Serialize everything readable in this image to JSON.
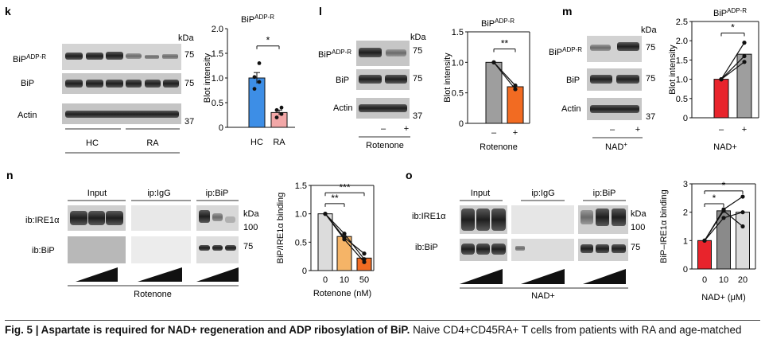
{
  "panels": {
    "k": {
      "letter": "k",
      "kda": "kDa",
      "rows": [
        "BiP",
        "ADP-R",
        "BiP",
        "Actin"
      ],
      "markers": [
        "75",
        "75",
        "37"
      ],
      "groups": [
        "HC",
        "RA"
      ],
      "chart_title": "BiP",
      "chart_title_sup": "ADP-R"
    },
    "l": {
      "letter": "l",
      "kda": "kDa",
      "rows": [
        "BiP",
        "ADP-R",
        "BiP",
        "Actin"
      ],
      "markers": [
        "75",
        "75",
        "37"
      ],
      "lane_signs": [
        "–",
        "+"
      ],
      "treatment": "Rotenone",
      "chart_title": "BiP",
      "chart_title_sup": "ADP-R"
    },
    "m": {
      "letter": "m",
      "kda": "kDa",
      "rows": [
        "BiP",
        "ADP-R",
        "BiP",
        "Actin"
      ],
      "markers": [
        "75",
        "75",
        "37"
      ],
      "lane_signs": [
        "–",
        "+"
      ],
      "treatment": "NAD",
      "treatment_sup": "+",
      "chart_title": "BiP",
      "chart_title_sup": "ADP-R"
    },
    "n": {
      "letter": "n",
      "kda": "kDa",
      "groups": [
        "Input",
        "ip:IgG",
        "ip:BiP"
      ],
      "rows": [
        "ib:IRE1α",
        "ib:BiP"
      ],
      "markers": [
        "100",
        "75"
      ],
      "treatment": "Rotenone"
    },
    "o": {
      "letter": "o",
      "kda": "kDa",
      "groups": [
        "Input",
        "ip:IgG",
        "ip:BiP"
      ],
      "rows": [
        "ib:IRE1α",
        "ib:BiP"
      ],
      "markers": [
        "100",
        "75"
      ],
      "treatment": "NAD+"
    }
  },
  "colors": {
    "hc_bar": "#3d8ee6",
    "ra_bar": "#f2a7a7",
    "grey_bar": "#9e9e9e",
    "rot_bar": "#f26b22",
    "nad_ctrl_bar": "#e8242c",
    "rot10_bar": "#f5b467",
    "light_bar": "#dcdcdc",
    "dark_bar": "#8a8a8a"
  },
  "chart_data": [
    {
      "panel": "k",
      "type": "bar",
      "title": "BiPADP-R",
      "categories": [
        "HC",
        "RA"
      ],
      "values": [
        1.0,
        0.3
      ],
      "errors": [
        0.11,
        0.05
      ],
      "points": [
        [
          0.78,
          0.92,
          1.02,
          1.3
        ],
        [
          0.2,
          0.27,
          0.35,
          0.4
        ]
      ],
      "ylabel": "Blot intensity",
      "xlabel": "",
      "ylim": [
        0,
        2.0
      ],
      "yticks": [
        "0",
        "0.5",
        "1.0",
        "1.5",
        "2.0"
      ],
      "significance": [
        {
          "label": "*",
          "from": 0,
          "to": 1
        }
      ]
    },
    {
      "panel": "l",
      "type": "bar",
      "title": "BiPADP-R",
      "categories": [
        "–",
        "+"
      ],
      "values": [
        1.0,
        0.6
      ],
      "paired": [
        [
          1.0,
          0.62
        ],
        [
          1.0,
          0.56
        ]
      ],
      "ylabel": "Blot intensity",
      "xlabel": "Rotenone",
      "ylim": [
        0,
        1.5
      ],
      "yticks": [
        "0",
        "0.5",
        "1.0",
        "1.5"
      ],
      "significance": [
        {
          "label": "**",
          "from": 0,
          "to": 1
        }
      ]
    },
    {
      "panel": "m",
      "type": "bar",
      "title": "BiPADP-R",
      "categories": [
        "–",
        "+"
      ],
      "values": [
        1.0,
        1.65
      ],
      "paired": [
        [
          1.0,
          1.95
        ],
        [
          1.0,
          1.6
        ],
        [
          1.0,
          1.45
        ]
      ],
      "ylabel": "Blot intensity",
      "xlabel": "NAD+",
      "ylim": [
        0,
        2.5
      ],
      "yticks": [
        "0",
        "0.5",
        "1.0",
        "1.5",
        "2.0",
        "2.5"
      ],
      "significance": [
        {
          "label": "*",
          "from": 0,
          "to": 1
        }
      ]
    },
    {
      "panel": "n",
      "type": "bar",
      "title": "",
      "categories": [
        "0",
        "10",
        "50"
      ],
      "values": [
        1.0,
        0.6,
        0.22
      ],
      "paired": [
        [
          1.0,
          0.65,
          0.2
        ],
        [
          1.0,
          0.58,
          0.3
        ],
        [
          1.0,
          0.55,
          0.15
        ]
      ],
      "ylabel": "BiP/IRE1α binding",
      "xlabel": "Rotenone (nM)",
      "ylim": [
        0,
        1.5
      ],
      "yticks": [
        "0",
        "0.5",
        "1.0",
        "1.5"
      ],
      "significance": [
        {
          "label": "**",
          "from": 0,
          "to": 1
        },
        {
          "label": "***",
          "from": 0,
          "to": 2
        }
      ]
    },
    {
      "panel": "o",
      "type": "bar",
      "title": "",
      "categories": [
        "0",
        "10",
        "20"
      ],
      "values": [
        1.0,
        2.05,
        2.0
      ],
      "paired": [
        [
          1.0,
          2.1,
          2.55
        ],
        [
          1.0,
          2.05,
          1.5
        ],
        [
          1.0,
          1.8,
          2.0
        ]
      ],
      "ylabel": "BiP–IRE1α binding",
      "xlabel": "NAD+ (μM)",
      "ylim": [
        0,
        3
      ],
      "yticks": [
        "0",
        "1",
        "2",
        "3"
      ],
      "significance": [
        {
          "label": "*",
          "from": 0,
          "to": 1
        },
        {
          "label": "*",
          "from": 0,
          "to": 2
        }
      ]
    }
  ],
  "caption": {
    "head": "Fig. 5 | Aspartate is required for NAD+ regeneration and ADP ribosylation of BiP.",
    "body": " Naive CD4+CD45RA+ T cells from patients with RA and age-matched"
  }
}
